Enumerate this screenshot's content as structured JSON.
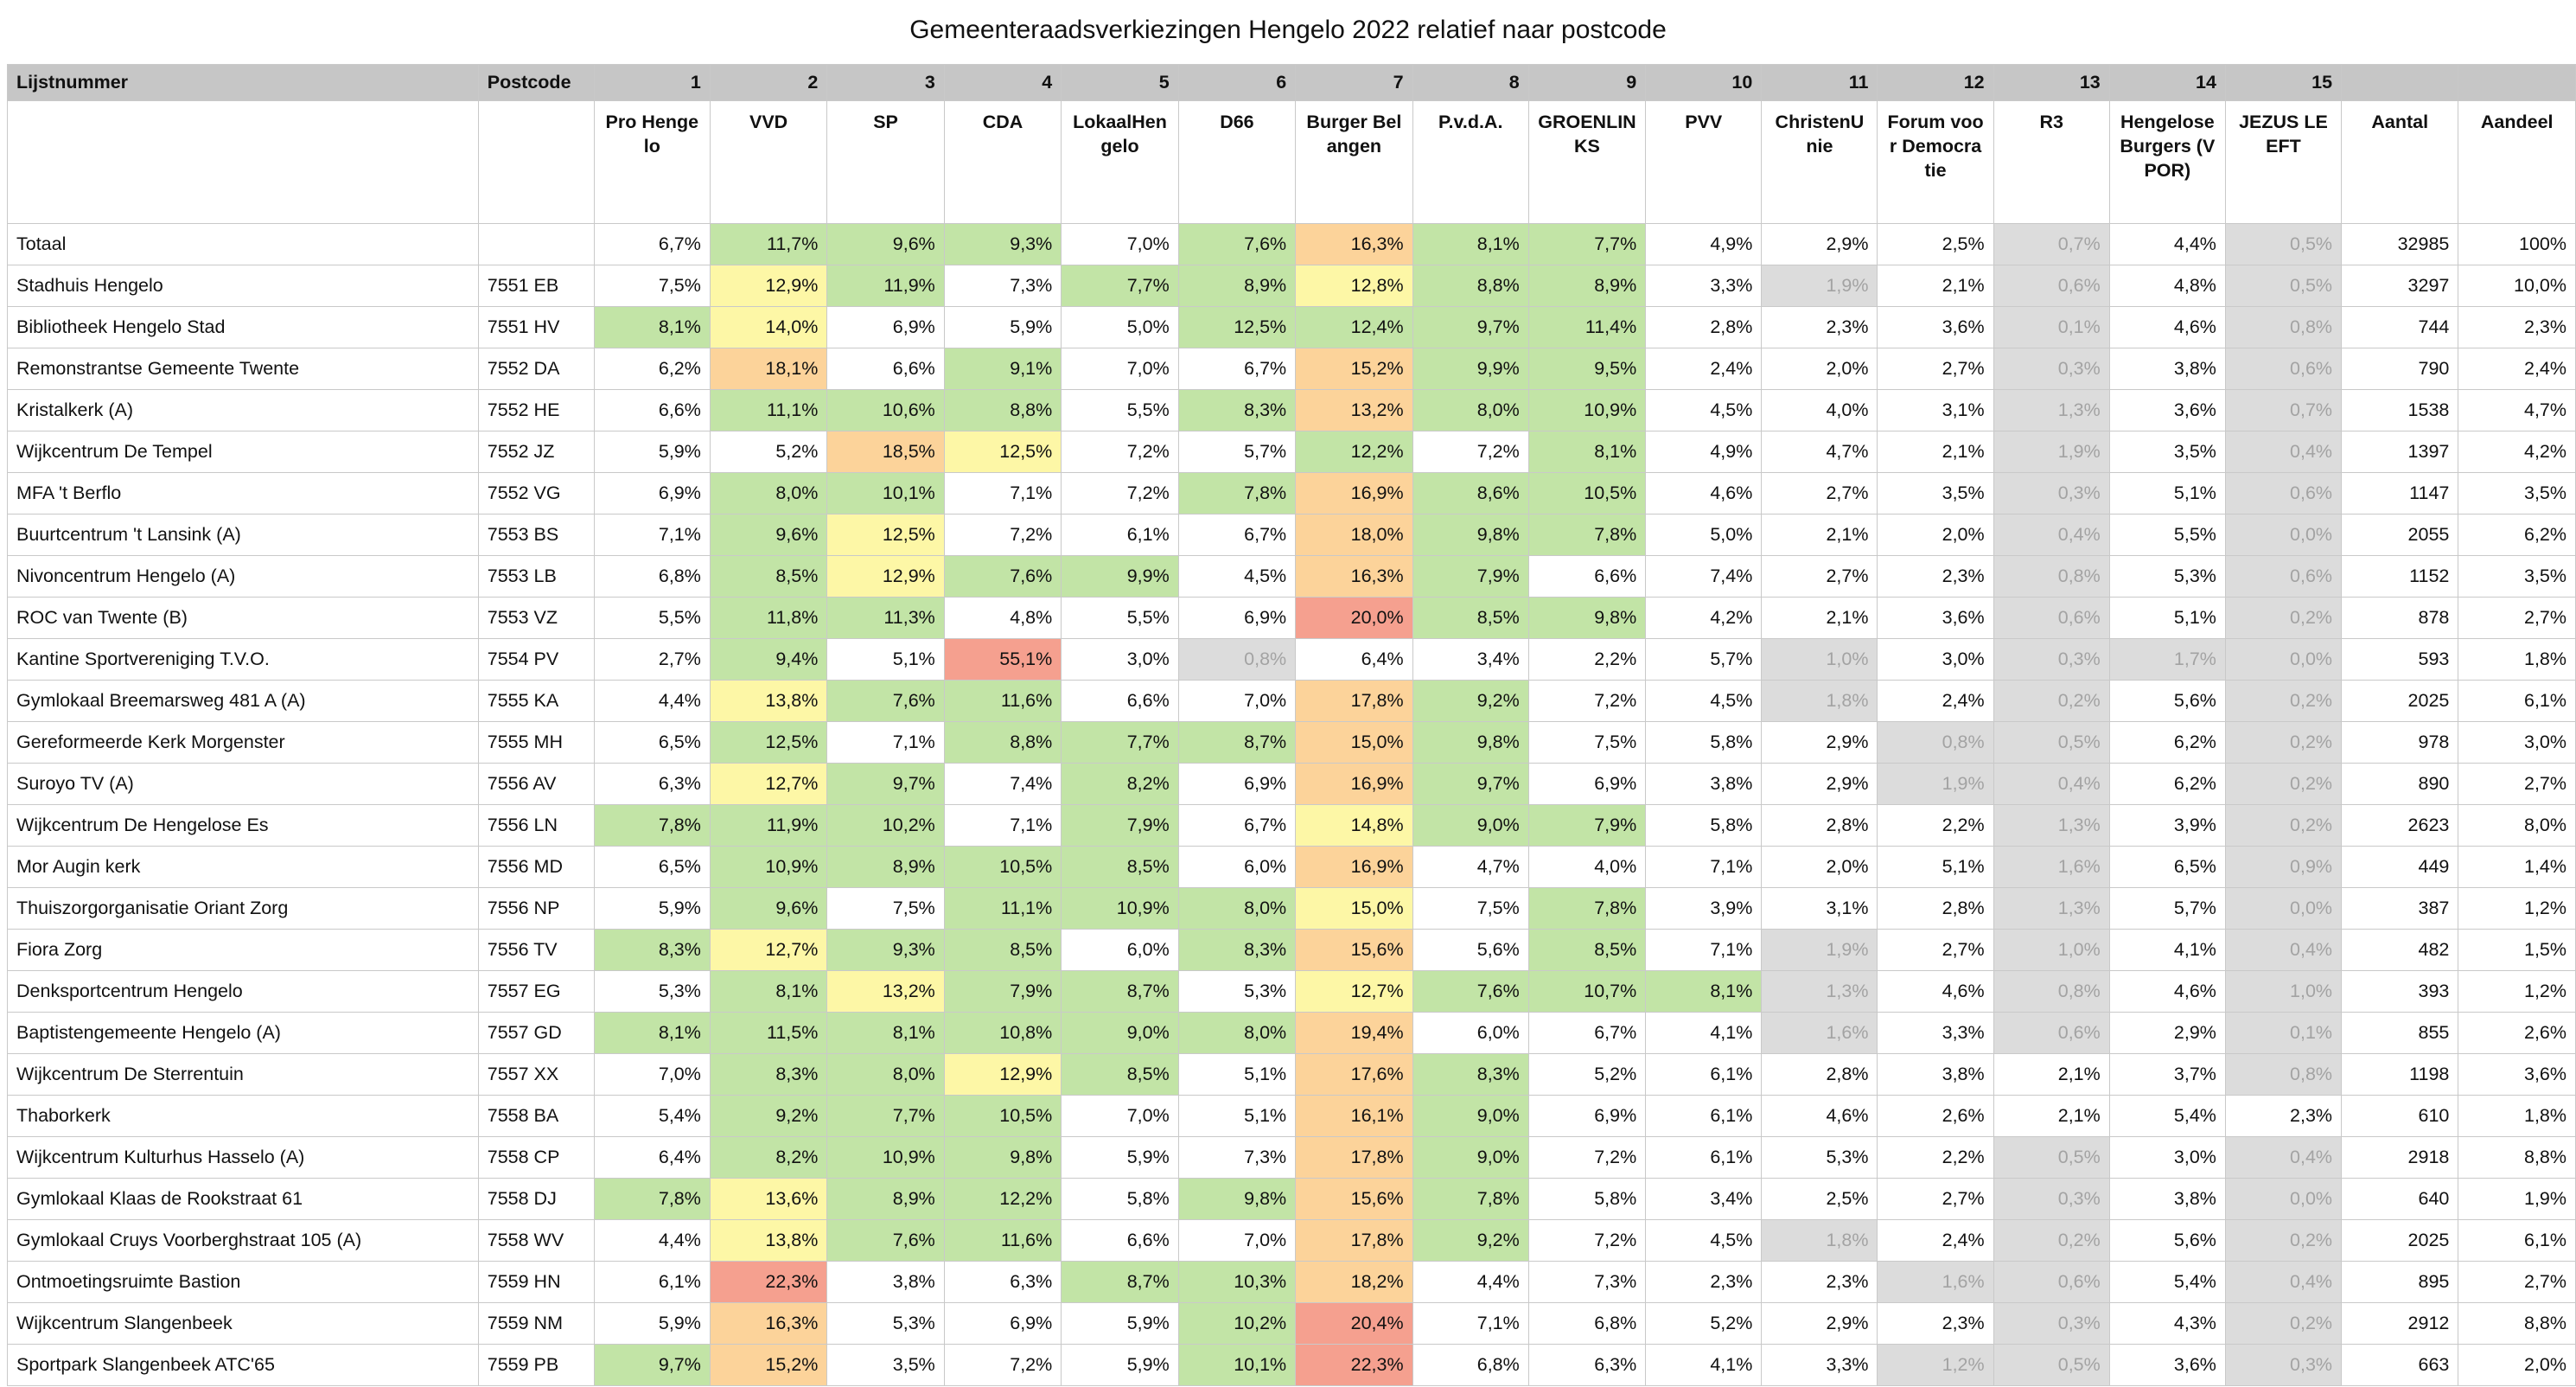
{
  "title": "Gemeenteraadsverkiezingen Hengelo 2022 relatief naar postcode",
  "colors": {
    "green": "#c2e4a6",
    "yellow": "#fdf7a6",
    "orange": "#fcd39a",
    "red": "#f5a08f",
    "grey": "#dcdcdc",
    "header": "#c6c6c6"
  },
  "header_row": [
    "Lijstnummer",
    "Postcode",
    "1",
    "2",
    "3",
    "4",
    "5",
    "6",
    "7",
    "8",
    "9",
    "10",
    "11",
    "12",
    "13",
    "14",
    "15",
    "",
    ""
  ],
  "party_row": [
    "",
    "",
    "Pro Hengelo",
    "VVD",
    "SP",
    "CDA",
    "LokaalHengelo",
    "D66",
    "Burger Belangen",
    "P.v.d.A.",
    "GROENLINKS",
    "PVV",
    "ChristenUnie",
    "Forum voor Democratie",
    "R3",
    "Hengelose Burgers (VPOR)",
    "JEZUS LEEFT",
    "Aantal",
    "Aandeel"
  ],
  "rows": [
    {
      "name": "Totaal",
      "postcode": "",
      "values": [
        "6,7%",
        "11,7%",
        "9,6%",
        "9,3%",
        "7,0%",
        "7,6%",
        "16,3%",
        "8,1%",
        "7,7%",
        "4,9%",
        "2,9%",
        "2,5%",
        "0,7%",
        "4,4%",
        "0,5%"
      ],
      "colors": [
        "",
        "g",
        "g",
        "g",
        "",
        "g",
        "o",
        "g",
        "g",
        "",
        "",
        "",
        "x",
        "",
        "x"
      ],
      "aantal": "32985",
      "aandeel": "100%"
    },
    {
      "name": "Stadhuis Hengelo",
      "postcode": "7551 EB",
      "values": [
        "7,5%",
        "12,9%",
        "11,9%",
        "7,3%",
        "7,7%",
        "8,9%",
        "12,8%",
        "8,8%",
        "8,9%",
        "3,3%",
        "1,9%",
        "2,1%",
        "0,6%",
        "4,8%",
        "0,5%"
      ],
      "colors": [
        "",
        "y",
        "g",
        "",
        "g",
        "g",
        "y",
        "g",
        "g",
        "",
        "x",
        "",
        "x",
        "",
        "x"
      ],
      "aantal": "3297",
      "aandeel": "10,0%"
    },
    {
      "name": "Bibliotheek Hengelo Stad",
      "postcode": "7551 HV",
      "values": [
        "8,1%",
        "14,0%",
        "6,9%",
        "5,9%",
        "5,0%",
        "12,5%",
        "12,4%",
        "9,7%",
        "11,4%",
        "2,8%",
        "2,3%",
        "3,6%",
        "0,1%",
        "4,6%",
        "0,8%"
      ],
      "colors": [
        "g",
        "y",
        "",
        "",
        "",
        "g",
        "g",
        "g",
        "g",
        "",
        "",
        "",
        "x",
        "",
        "x"
      ],
      "aantal": "744",
      "aandeel": "2,3%"
    },
    {
      "name": "Remonstrantse Gemeente Twente",
      "postcode": "7552 DA",
      "values": [
        "6,2%",
        "18,1%",
        "6,6%",
        "9,1%",
        "7,0%",
        "6,7%",
        "15,2%",
        "9,9%",
        "9,5%",
        "2,4%",
        "2,0%",
        "2,7%",
        "0,3%",
        "3,8%",
        "0,6%"
      ],
      "colors": [
        "",
        "o",
        "",
        "g",
        "",
        "",
        "o",
        "g",
        "g",
        "",
        "",
        "",
        "x",
        "",
        "x"
      ],
      "aantal": "790",
      "aandeel": "2,4%"
    },
    {
      "name": "Kristalkerk (A)",
      "postcode": "7552 HE",
      "values": [
        "6,6%",
        "11,1%",
        "10,6%",
        "8,8%",
        "5,5%",
        "8,3%",
        "13,2%",
        "8,0%",
        "10,9%",
        "4,5%",
        "4,0%",
        "3,1%",
        "1,3%",
        "3,6%",
        "0,7%"
      ],
      "colors": [
        "",
        "g",
        "g",
        "g",
        "",
        "g",
        "o",
        "g",
        "g",
        "",
        "",
        "",
        "x",
        "",
        "x"
      ],
      "aantal": "1538",
      "aandeel": "4,7%"
    },
    {
      "name": "Wijkcentrum De Tempel",
      "postcode": "7552 JZ",
      "values": [
        "5,9%",
        "5,2%",
        "18,5%",
        "12,5%",
        "7,2%",
        "5,7%",
        "12,2%",
        "7,2%",
        "8,1%",
        "4,9%",
        "4,7%",
        "2,1%",
        "1,9%",
        "3,5%",
        "0,4%"
      ],
      "colors": [
        "",
        "",
        "o",
        "y",
        "",
        "",
        "g",
        "",
        "g",
        "",
        "",
        "",
        "x",
        "",
        "x"
      ],
      "aantal": "1397",
      "aandeel": "4,2%"
    },
    {
      "name": "MFA 't Berflo",
      "postcode": "7552 VG",
      "values": [
        "6,9%",
        "8,0%",
        "10,1%",
        "7,1%",
        "7,2%",
        "7,8%",
        "16,9%",
        "8,6%",
        "10,5%",
        "4,6%",
        "2,7%",
        "3,5%",
        "0,3%",
        "5,1%",
        "0,6%"
      ],
      "colors": [
        "",
        "g",
        "g",
        "",
        "",
        "g",
        "o",
        "g",
        "g",
        "",
        "",
        "",
        "x",
        "",
        "x"
      ],
      "aantal": "1147",
      "aandeel": "3,5%"
    },
    {
      "name": "Buurtcentrum 't Lansink (A)",
      "postcode": "7553 BS",
      "values": [
        "7,1%",
        "9,6%",
        "12,5%",
        "7,2%",
        "6,1%",
        "6,7%",
        "18,0%",
        "9,8%",
        "7,8%",
        "5,0%",
        "2,1%",
        "2,0%",
        "0,4%",
        "5,5%",
        "0,0%"
      ],
      "colors": [
        "",
        "g",
        "y",
        "",
        "",
        "",
        "o",
        "g",
        "g",
        "",
        "",
        "",
        "x",
        "",
        "x"
      ],
      "aantal": "2055",
      "aandeel": "6,2%"
    },
    {
      "name": "Nivoncentrum Hengelo (A)",
      "postcode": "7553 LB",
      "values": [
        "6,8%",
        "8,5%",
        "12,9%",
        "7,6%",
        "9,9%",
        "4,5%",
        "16,3%",
        "7,9%",
        "6,6%",
        "7,4%",
        "2,7%",
        "2,3%",
        "0,8%",
        "5,3%",
        "0,6%"
      ],
      "colors": [
        "",
        "g",
        "y",
        "g",
        "g",
        "",
        "o",
        "g",
        "",
        "",
        "",
        "",
        "x",
        "",
        "x"
      ],
      "aantal": "1152",
      "aandeel": "3,5%"
    },
    {
      "name": "ROC van Twente (B)",
      "postcode": "7553 VZ",
      "values": [
        "5,5%",
        "11,8%",
        "11,3%",
        "4,8%",
        "5,5%",
        "6,9%",
        "20,0%",
        "8,5%",
        "9,8%",
        "4,2%",
        "2,1%",
        "3,6%",
        "0,6%",
        "5,1%",
        "0,2%"
      ],
      "colors": [
        "",
        "g",
        "g",
        "",
        "",
        "",
        "r",
        "g",
        "g",
        "",
        "",
        "",
        "x",
        "",
        "x"
      ],
      "aantal": "878",
      "aandeel": "2,7%"
    },
    {
      "name": "Kantine Sportvereniging T.V.O.",
      "postcode": "7554 PV",
      "values": [
        "2,7%",
        "9,4%",
        "5,1%",
        "55,1%",
        "3,0%",
        "0,8%",
        "6,4%",
        "3,4%",
        "2,2%",
        "5,7%",
        "1,0%",
        "3,0%",
        "0,3%",
        "1,7%",
        "0,0%"
      ],
      "colors": [
        "",
        "g",
        "",
        "r",
        "",
        "x",
        "",
        "",
        "",
        "",
        "x",
        "",
        "x",
        "x",
        "x"
      ],
      "aantal": "593",
      "aandeel": "1,8%"
    },
    {
      "name": "Gymlokaal Breemarsweg 481 A  (A)",
      "postcode": "7555 KA",
      "values": [
        "4,4%",
        "13,8%",
        "7,6%",
        "11,6%",
        "6,6%",
        "7,0%",
        "17,8%",
        "9,2%",
        "7,2%",
        "4,5%",
        "1,8%",
        "2,4%",
        "0,2%",
        "5,6%",
        "0,2%"
      ],
      "colors": [
        "",
        "y",
        "g",
        "g",
        "",
        "",
        "o",
        "g",
        "",
        "",
        "x",
        "",
        "x",
        "",
        "x"
      ],
      "aantal": "2025",
      "aandeel": "6,1%"
    },
    {
      "name": "Gereformeerde Kerk Morgenster",
      "postcode": "7555 MH",
      "values": [
        "6,5%",
        "12,5%",
        "7,1%",
        "8,8%",
        "7,7%",
        "8,7%",
        "15,0%",
        "9,8%",
        "7,5%",
        "5,8%",
        "2,9%",
        "0,8%",
        "0,5%",
        "6,2%",
        "0,2%"
      ],
      "colors": [
        "",
        "g",
        "",
        "g",
        "g",
        "g",
        "o",
        "g",
        "",
        "",
        "",
        "x",
        "x",
        "",
        "x"
      ],
      "aantal": "978",
      "aandeel": "3,0%"
    },
    {
      "name": "Suroyo TV (A)",
      "postcode": "7556 AV",
      "values": [
        "6,3%",
        "12,7%",
        "9,7%",
        "7,4%",
        "8,2%",
        "6,9%",
        "16,9%",
        "9,7%",
        "6,9%",
        "3,8%",
        "2,9%",
        "1,9%",
        "0,4%",
        "6,2%",
        "0,2%"
      ],
      "colors": [
        "",
        "y",
        "g",
        "",
        "g",
        "",
        "o",
        "g",
        "",
        "",
        "",
        "x",
        "x",
        "",
        "x"
      ],
      "aantal": "890",
      "aandeel": "2,7%"
    },
    {
      "name": "Wijkcentrum De Hengelose Es",
      "postcode": "7556 LN",
      "values": [
        "7,8%",
        "11,9%",
        "10,2%",
        "7,1%",
        "7,9%",
        "6,7%",
        "14,8%",
        "9,0%",
        "7,9%",
        "5,8%",
        "2,8%",
        "2,2%",
        "1,3%",
        "3,9%",
        "0,2%"
      ],
      "colors": [
        "g",
        "g",
        "g",
        "",
        "g",
        "",
        "y",
        "g",
        "g",
        "",
        "",
        "",
        "x",
        "",
        "x"
      ],
      "aantal": "2623",
      "aandeel": "8,0%"
    },
    {
      "name": "Mor Augin kerk",
      "postcode": "7556 MD",
      "values": [
        "6,5%",
        "10,9%",
        "8,9%",
        "10,5%",
        "8,5%",
        "6,0%",
        "16,9%",
        "4,7%",
        "4,0%",
        "7,1%",
        "2,0%",
        "5,1%",
        "1,6%",
        "6,5%",
        "0,9%"
      ],
      "colors": [
        "",
        "g",
        "g",
        "g",
        "g",
        "",
        "o",
        "",
        "",
        "",
        "",
        "",
        "x",
        "",
        "x"
      ],
      "aantal": "449",
      "aandeel": "1,4%"
    },
    {
      "name": "Thuiszorgorganisatie Oriant Zorg",
      "postcode": "7556 NP",
      "values": [
        "5,9%",
        "9,6%",
        "7,5%",
        "11,1%",
        "10,9%",
        "8,0%",
        "15,0%",
        "7,5%",
        "7,8%",
        "3,9%",
        "3,1%",
        "2,8%",
        "1,3%",
        "5,7%",
        "0,0%"
      ],
      "colors": [
        "",
        "g",
        "",
        "g",
        "g",
        "g",
        "y",
        "",
        "g",
        "",
        "",
        "",
        "x",
        "",
        "x"
      ],
      "aantal": "387",
      "aandeel": "1,2%"
    },
    {
      "name": "Fiora Zorg",
      "postcode": "7556 TV",
      "values": [
        "8,3%",
        "12,7%",
        "9,3%",
        "8,5%",
        "6,0%",
        "8,3%",
        "15,6%",
        "5,6%",
        "8,5%",
        "7,1%",
        "1,9%",
        "2,7%",
        "1,0%",
        "4,1%",
        "0,4%"
      ],
      "colors": [
        "g",
        "y",
        "g",
        "g",
        "",
        "g",
        "o",
        "",
        "g",
        "",
        "x",
        "",
        "x",
        "",
        "x"
      ],
      "aantal": "482",
      "aandeel": "1,5%"
    },
    {
      "name": "Denksportcentrum Hengelo",
      "postcode": "7557 EG",
      "values": [
        "5,3%",
        "8,1%",
        "13,2%",
        "7,9%",
        "8,7%",
        "5,3%",
        "12,7%",
        "7,6%",
        "10,7%",
        "8,1%",
        "1,3%",
        "4,6%",
        "0,8%",
        "4,6%",
        "1,0%"
      ],
      "colors": [
        "",
        "g",
        "y",
        "g",
        "g",
        "",
        "y",
        "g",
        "g",
        "g",
        "x",
        "",
        "x",
        "",
        "x"
      ],
      "aantal": "393",
      "aandeel": "1,2%"
    },
    {
      "name": "Baptistengemeente Hengelo (A)",
      "postcode": "7557 GD",
      "values": [
        "8,1%",
        "11,5%",
        "8,1%",
        "10,8%",
        "9,0%",
        "8,0%",
        "19,4%",
        "6,0%",
        "6,7%",
        "4,1%",
        "1,6%",
        "3,3%",
        "0,6%",
        "2,9%",
        "0,1%"
      ],
      "colors": [
        "g",
        "g",
        "g",
        "g",
        "g",
        "g",
        "o",
        "",
        "",
        "",
        "x",
        "",
        "x",
        "",
        "x"
      ],
      "aantal": "855",
      "aandeel": "2,6%"
    },
    {
      "name": "Wijkcentrum De Sterrentuin",
      "postcode": "7557 XX",
      "values": [
        "7,0%",
        "8,3%",
        "8,0%",
        "12,9%",
        "8,5%",
        "5,1%",
        "17,6%",
        "8,3%",
        "5,2%",
        "6,1%",
        "2,8%",
        "3,8%",
        "2,1%",
        "3,7%",
        "0,8%"
      ],
      "colors": [
        "",
        "g",
        "g",
        "y",
        "g",
        "",
        "o",
        "g",
        "",
        "",
        "",
        "",
        "",
        "",
        "x"
      ],
      "aantal": "1198",
      "aandeel": "3,6%"
    },
    {
      "name": "Thaborkerk",
      "postcode": "7558 BA",
      "values": [
        "5,4%",
        "9,2%",
        "7,7%",
        "10,5%",
        "7,0%",
        "5,1%",
        "16,1%",
        "9,0%",
        "6,9%",
        "6,1%",
        "4,6%",
        "2,6%",
        "2,1%",
        "5,4%",
        "2,3%"
      ],
      "colors": [
        "",
        "g",
        "g",
        "g",
        "",
        "",
        "o",
        "g",
        "",
        "",
        "",
        "",
        "",
        "",
        ""
      ],
      "aantal": "610",
      "aandeel": "1,8%"
    },
    {
      "name": "Wijkcentrum Kulturhus Hasselo (A)",
      "postcode": "7558 CP",
      "values": [
        "6,4%",
        "8,2%",
        "10,9%",
        "9,8%",
        "5,9%",
        "7,3%",
        "17,8%",
        "9,0%",
        "7,2%",
        "6,1%",
        "5,3%",
        "2,2%",
        "0,5%",
        "3,0%",
        "0,4%"
      ],
      "colors": [
        "",
        "g",
        "g",
        "g",
        "",
        "",
        "o",
        "g",
        "",
        "",
        "",
        "",
        "x",
        "",
        "x"
      ],
      "aantal": "2918",
      "aandeel": "8,8%"
    },
    {
      "name": "Gymlokaal Klaas de Rookstraat 61",
      "postcode": "7558 DJ",
      "values": [
        "7,8%",
        "13,6%",
        "8,9%",
        "12,2%",
        "5,8%",
        "9,8%",
        "15,6%",
        "7,8%",
        "5,8%",
        "3,4%",
        "2,5%",
        "2,7%",
        "0,3%",
        "3,8%",
        "0,0%"
      ],
      "colors": [
        "g",
        "y",
        "g",
        "g",
        "",
        "g",
        "o",
        "g",
        "",
        "",
        "",
        "",
        "x",
        "",
        "x"
      ],
      "aantal": "640",
      "aandeel": "1,9%"
    },
    {
      "name": "Gymlokaal Cruys Voorberghstraat 105 (A)",
      "postcode": "7558 WV",
      "values": [
        "4,4%",
        "13,8%",
        "7,6%",
        "11,6%",
        "6,6%",
        "7,0%",
        "17,8%",
        "9,2%",
        "7,2%",
        "4,5%",
        "1,8%",
        "2,4%",
        "0,2%",
        "5,6%",
        "0,2%"
      ],
      "colors": [
        "",
        "y",
        "g",
        "g",
        "",
        "",
        "o",
        "g",
        "",
        "",
        "x",
        "",
        "x",
        "",
        "x"
      ],
      "aantal": "2025",
      "aandeel": "6,1%"
    },
    {
      "name": "Ontmoetingsruimte Bastion",
      "postcode": "7559 HN",
      "values": [
        "6,1%",
        "22,3%",
        "3,8%",
        "6,3%",
        "8,7%",
        "10,3%",
        "18,2%",
        "4,4%",
        "7,3%",
        "2,3%",
        "2,3%",
        "1,6%",
        "0,6%",
        "5,4%",
        "0,4%"
      ],
      "colors": [
        "",
        "r",
        "",
        "",
        "g",
        "g",
        "o",
        "",
        "",
        "",
        "",
        "x",
        "x",
        "",
        "x"
      ],
      "aantal": "895",
      "aandeel": "2,7%"
    },
    {
      "name": "Wijkcentrum Slangenbeek",
      "postcode": "7559 NM",
      "values": [
        "5,9%",
        "16,3%",
        "5,3%",
        "6,9%",
        "5,9%",
        "10,2%",
        "20,4%",
        "7,1%",
        "6,8%",
        "5,2%",
        "2,9%",
        "2,3%",
        "0,3%",
        "4,3%",
        "0,2%"
      ],
      "colors": [
        "",
        "o",
        "",
        "",
        "",
        "g",
        "r",
        "",
        "",
        "",
        "",
        "",
        "x",
        "",
        "x"
      ],
      "aantal": "2912",
      "aandeel": "8,8%"
    },
    {
      "name": "Sportpark Slangenbeek ATC'65",
      "postcode": "7559 PB",
      "values": [
        "9,7%",
        "15,2%",
        "3,5%",
        "7,2%",
        "5,9%",
        "10,1%",
        "22,3%",
        "6,8%",
        "6,3%",
        "4,1%",
        "3,3%",
        "1,2%",
        "0,5%",
        "3,6%",
        "0,3%"
      ],
      "colors": [
        "g",
        "o",
        "",
        "",
        "",
        "g",
        "r",
        "",
        "",
        "",
        "",
        "x",
        "x",
        "",
        "x"
      ],
      "aantal": "663",
      "aandeel": "2,0%"
    }
  ]
}
